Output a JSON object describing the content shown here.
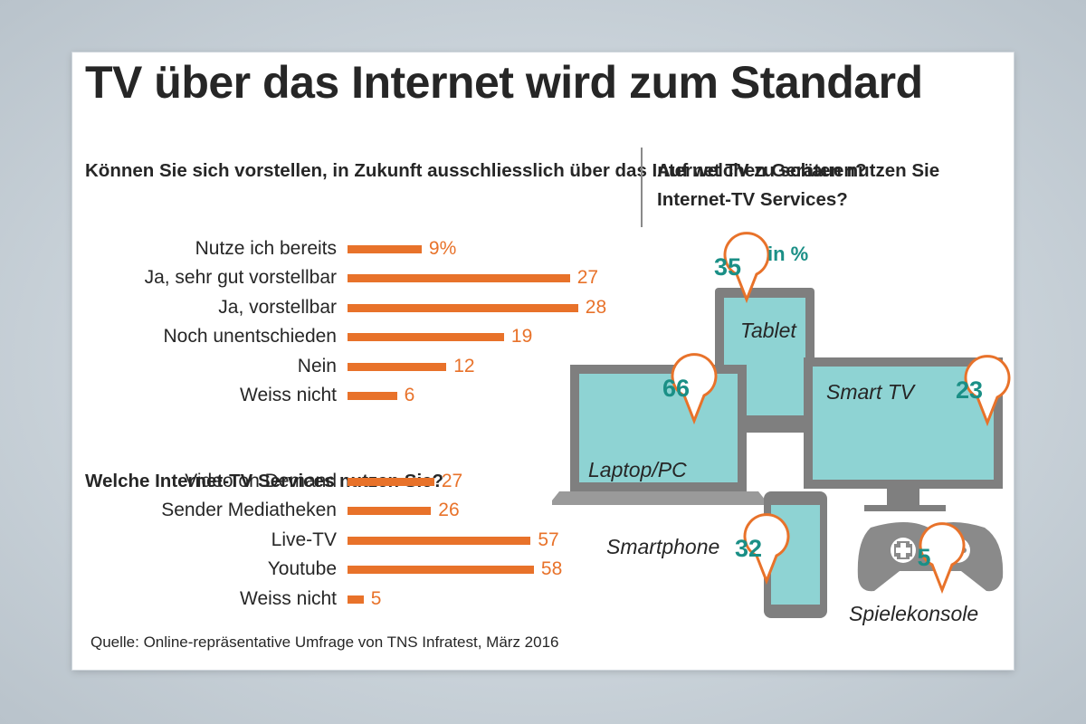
{
  "title": "TV über das Internet wird zum Standard",
  "colors": {
    "bar": "#e8722a",
    "teal": "#1a8f86",
    "screen": "#8ed3d3",
    "frame": "#7f7f7f",
    "bubble": "#e8722a"
  },
  "chart_data": [
    {
      "type": "bar",
      "orientation": "horizontal",
      "title": "Können Sie sich vorstellen, in Zukunft ausschliesslich über das Internet TV zu schauen?",
      "categories": [
        "Nutze ich bereits",
        "Ja, sehr gut vorstellbar",
        "Ja, vorstellbar",
        "Noch unentschieden",
        "Nein",
        "Weiss nicht"
      ],
      "values": [
        9,
        27,
        28,
        19,
        12,
        6
      ],
      "value_labels": [
        "9%",
        "27",
        "28",
        "19",
        "12",
        "6"
      ],
      "unit": "%"
    },
    {
      "type": "bar",
      "orientation": "horizontal",
      "title": "Welche Internet-TV Services nutzen Sie?",
      "categories": [
        "Video on Demand",
        "Sender Mediatheken",
        "Live-TV",
        "Youtube",
        "Weiss nicht"
      ],
      "values": [
        27,
        26,
        57,
        58,
        5
      ],
      "value_labels": [
        "27",
        "26",
        "57",
        "58",
        "5"
      ],
      "unit": "%"
    },
    {
      "type": "pictogram",
      "title": "Auf welchen Geräten nutzen Sie Internet-TV Services?",
      "unit_label": "in %",
      "categories": [
        "Laptop/PC",
        "Tablet",
        "Smart TV",
        "Smartphone",
        "Spielekonsole"
      ],
      "values": [
        66,
        35,
        23,
        32,
        5
      ]
    }
  ],
  "source": "Quelle: Online-repräsentative Umfrage von TNS Infratest, März 2016"
}
